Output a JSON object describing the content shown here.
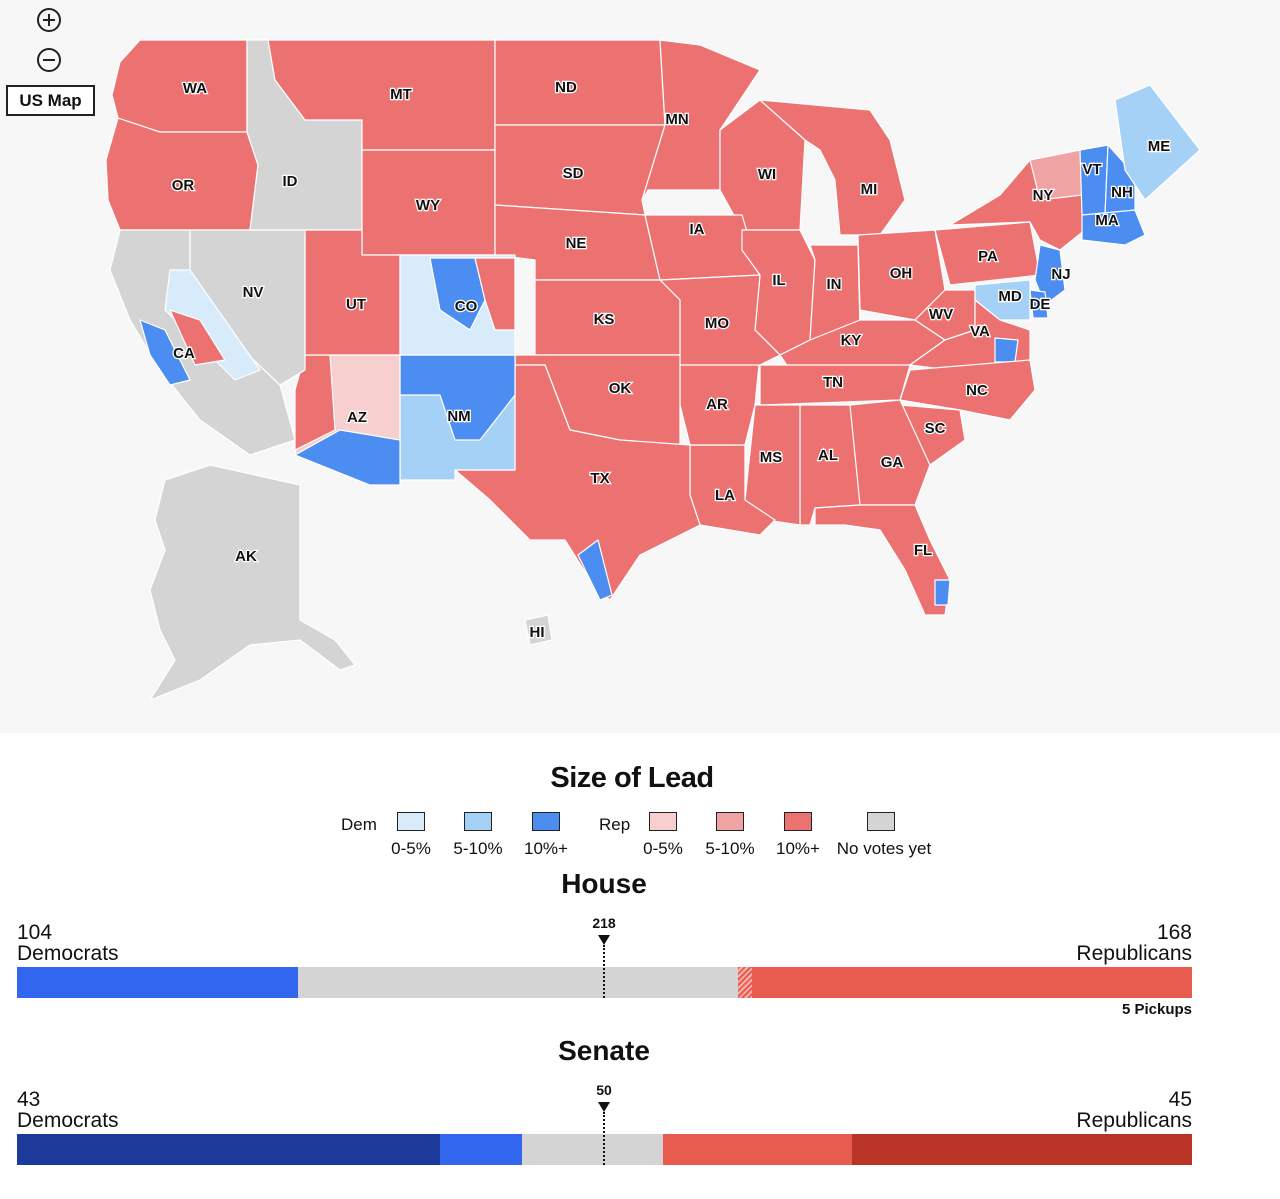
{
  "controls": {
    "zoom_in_icon": "plus-circle-icon",
    "zoom_out_icon": "minus-circle-icon",
    "us_map_label": "US Map"
  },
  "colors": {
    "dem_0_5": "#d7ebfb",
    "dem_5_10": "#a6d1f7",
    "dem_10_plus": "#4b8df0",
    "rep_0_5": "#f7cfcf",
    "rep_5_10": "#f0a3a3",
    "rep_10_plus": "#ec7272",
    "no_votes": "#d4d4d4",
    "house_dem": "#3366ee",
    "house_rep": "#e85b4f",
    "senate_dem_held": "#1b3a99",
    "senate_dem": "#3366ee",
    "senate_rep": "#e85b4f",
    "senate_rep_held": "#b93427",
    "undecided": "#d4d4d4",
    "map_bg": "#f7f7f7"
  },
  "states": [
    "WA",
    "OR",
    "ID",
    "MT",
    "ND",
    "SD",
    "WY",
    "NE",
    "MN",
    "WI",
    "MI",
    "IA",
    "IL",
    "IN",
    "OH",
    "PA",
    "NY",
    "VT",
    "NH",
    "ME",
    "MA",
    "NJ",
    "MD",
    "DE",
    "WV",
    "VA",
    "KY",
    "NC",
    "TN",
    "SC",
    "GA",
    "AL",
    "MS",
    "LA",
    "AR",
    "MO",
    "KS",
    "OK",
    "TX",
    "NM",
    "AZ",
    "UT",
    "CO",
    "NV",
    "CA",
    "FL",
    "AK",
    "HI"
  ],
  "legend": {
    "title": "Size of Lead",
    "dem_label": "Dem",
    "rep_label": "Rep",
    "dem_items": [
      "0-5%",
      "5-10%",
      "10%+"
    ],
    "rep_items": [
      "0-5%",
      "5-10%",
      "10%+"
    ],
    "no_votes_label": "No votes yet"
  },
  "house": {
    "title": "House",
    "dem_seats": "104",
    "dem_label": "Democrats",
    "rep_seats": "168",
    "rep_label": "Republicans",
    "majority": "218",
    "pickups": "5 Pickups"
  },
  "senate": {
    "title": "Senate",
    "dem_seats": "43",
    "dem_label": "Democrats",
    "rep_seats": "45",
    "rep_label": "Republicans",
    "majority": "50"
  }
}
